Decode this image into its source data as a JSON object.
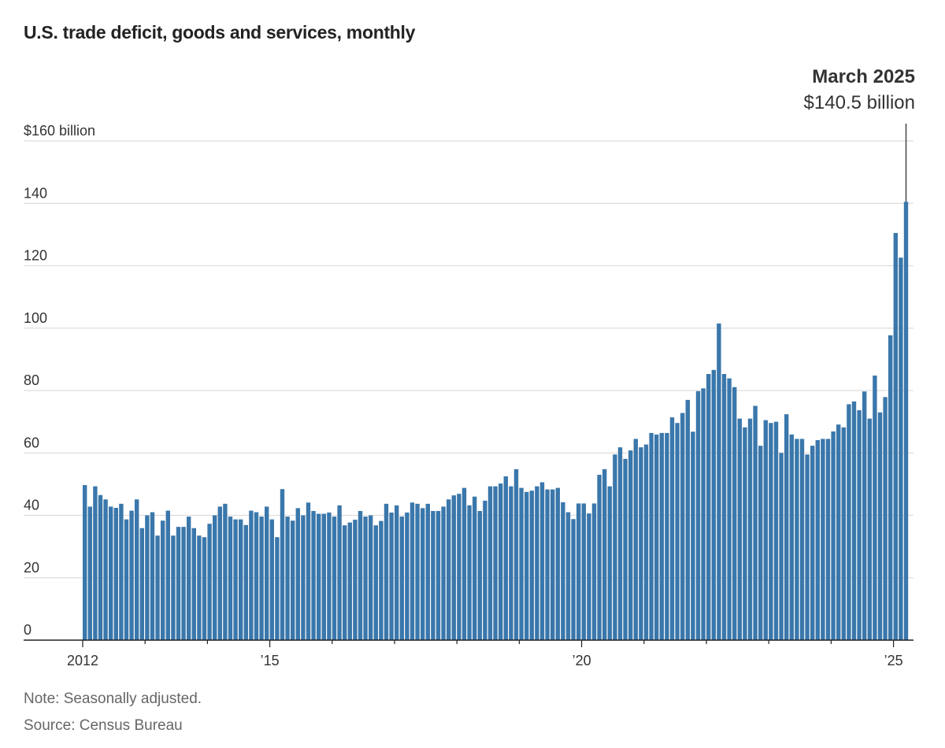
{
  "chart_data": {
    "type": "bar",
    "title": "U.S. trade deficit, goods and services, monthly",
    "x_start": "2012-01",
    "x_end": "2025-03",
    "frequency": "monthly",
    "ylim": [
      0,
      160
    ],
    "yticks": [
      0,
      20,
      40,
      60,
      80,
      100,
      120,
      140,
      160
    ],
    "ytick_labels": [
      "0",
      "20",
      "40",
      "60",
      "80",
      "100",
      "120",
      "140",
      "$160 billion"
    ],
    "xtick_labels": [
      {
        "year": 2012,
        "label": "2012"
      },
      {
        "year": 2015,
        "label": "’15"
      },
      {
        "year": 2020,
        "label": "’20"
      },
      {
        "year": 2025,
        "label": "’25"
      }
    ],
    "grid": true,
    "bar_color": "#3a77ab",
    "values": [
      49.7,
      42.8,
      49.3,
      46.5,
      45.1,
      42.8,
      42.4,
      43.7,
      38.7,
      41.5,
      45.1,
      35.9,
      40.0,
      41.0,
      33.5,
      38.3,
      41.5,
      33.5,
      36.3,
      36.3,
      39.6,
      35.9,
      33.5,
      33.0,
      37.3,
      40.0,
      42.8,
      43.7,
      39.6,
      38.7,
      38.7,
      36.9,
      41.5,
      41.0,
      39.6,
      42.8,
      38.7,
      33.0,
      48.4,
      39.6,
      38.3,
      42.3,
      40.0,
      44.1,
      41.4,
      40.5,
      40.5,
      40.9,
      39.6,
      43.2,
      36.8,
      37.7,
      38.6,
      41.4,
      39.6,
      40.0,
      36.8,
      38.2,
      43.7,
      40.9,
      43.2,
      39.6,
      40.9,
      44.1,
      43.7,
      42.3,
      43.7,
      41.4,
      41.4,
      42.8,
      45.1,
      46.4,
      46.9,
      48.8,
      43.2,
      46.0,
      41.4,
      44.7,
      49.3,
      49.3,
      50.2,
      52.5,
      49.3,
      54.8,
      48.8,
      47.5,
      47.9,
      49.3,
      50.6,
      48.3,
      48.3,
      48.8,
      44.2,
      41.0,
      38.8,
      43.8,
      43.8,
      40.6,
      43.8,
      53.0,
      54.8,
      49.3,
      59.5,
      61.8,
      58.1,
      60.8,
      64.5,
      61.8,
      62.7,
      66.4,
      65.9,
      66.4,
      66.4,
      71.4,
      69.6,
      72.8,
      77.0,
      66.8,
      79.8,
      80.7,
      85.3,
      86.6,
      101.5,
      85.3,
      83.9,
      81.1,
      71.0,
      68.2,
      71.0,
      75.1,
      62.3,
      70.5,
      69.6,
      70.0,
      60.0,
      72.4,
      65.9,
      64.5,
      64.5,
      59.5,
      62.3,
      64.1,
      64.5,
      64.5,
      66.9,
      69.1,
      68.2,
      75.6,
      76.5,
      73.7,
      79.7,
      71.0,
      84.8,
      73.0,
      77.9,
      97.7,
      130.5,
      122.6,
      140.5
    ],
    "annotation": {
      "title": "March 2025",
      "value": "$140.5 billion"
    },
    "note": "Note: Seasonally adjusted.",
    "source": "Source: Census Bureau"
  }
}
